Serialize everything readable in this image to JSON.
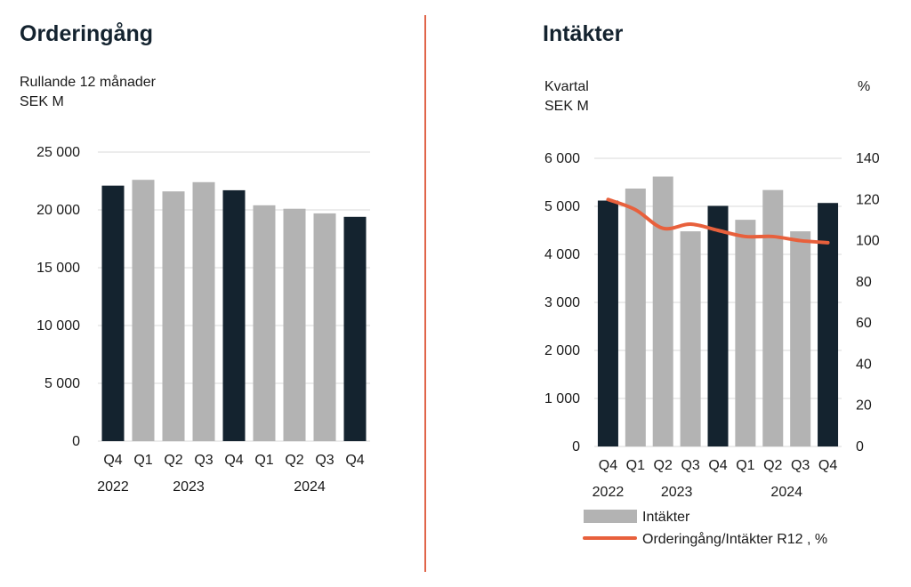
{
  "colors": {
    "highlight_bar": "#14232f",
    "regular_bar": "#b3b3b3",
    "line": "#e8603c",
    "divider": "#e0654a",
    "grid": "#d9d9d9"
  },
  "left_panel": {
    "title": "Orderingång",
    "subtitle_line1": "Rullande 12 månader",
    "subtitle_line2": "SEK M"
  },
  "right_panel": {
    "title": "Intäkter",
    "subtitle_line1": "Kvartal",
    "subtitle_line2": "SEK M",
    "right_axis_unit": "%",
    "legend": {
      "bars": "Intäkter",
      "line": "Orderingång/Intäkter R12 , %"
    }
  },
  "chart_data": [
    {
      "type": "bar",
      "title": "Orderingång",
      "ylabel": "SEK M",
      "categories": [
        "Q4",
        "Q1",
        "Q2",
        "Q3",
        "Q4",
        "Q1",
        "Q2",
        "Q3",
        "Q4"
      ],
      "years": [
        {
          "label": "2022",
          "start": 0,
          "end": 0
        },
        {
          "label": "2023",
          "start": 1,
          "end": 4
        },
        {
          "label": "2024",
          "start": 5,
          "end": 8
        }
      ],
      "values": [
        22100,
        22600,
        21600,
        22400,
        21700,
        20400,
        20100,
        19700,
        19400
      ],
      "highlight": [
        true,
        false,
        false,
        false,
        true,
        false,
        false,
        false,
        true
      ],
      "ylim": [
        0,
        25000
      ],
      "yticks": [
        0,
        5000,
        10000,
        15000,
        20000,
        25000
      ],
      "ytick_labels": [
        "0",
        "5 000",
        "10 000",
        "15 000",
        "20 000",
        "25 000"
      ],
      "grid": true
    },
    {
      "type": "bar+line",
      "title": "Intäkter",
      "ylabel": "SEK M",
      "y2label": "%",
      "categories": [
        "Q4",
        "Q1",
        "Q2",
        "Q3",
        "Q4",
        "Q1",
        "Q2",
        "Q3",
        "Q4"
      ],
      "years": [
        {
          "label": "2022",
          "start": 0,
          "end": 0
        },
        {
          "label": "2023",
          "start": 1,
          "end": 4
        },
        {
          "label": "2024",
          "start": 5,
          "end": 8
        }
      ],
      "series": [
        {
          "name": "Intäkter",
          "type": "bar",
          "axis": "left",
          "values": [
            5120,
            5370,
            5620,
            4480,
            5010,
            4720,
            5340,
            4480,
            5070
          ],
          "highlight": [
            true,
            false,
            false,
            false,
            true,
            false,
            false,
            false,
            true
          ]
        },
        {
          "name": "Orderingång/Intäkter R12 , %",
          "type": "line",
          "axis": "right",
          "values": [
            120,
            115,
            106,
            108,
            105,
            102,
            102,
            100,
            99
          ]
        }
      ],
      "ylim": [
        0,
        6000
      ],
      "yticks": [
        0,
        1000,
        2000,
        3000,
        4000,
        5000,
        6000
      ],
      "ytick_labels": [
        "0",
        "1 000",
        "2 000",
        "3 000",
        "4 000",
        "5 000",
        "6 000"
      ],
      "y2lim": [
        0,
        140
      ],
      "y2ticks": [
        0,
        20,
        40,
        60,
        80,
        100,
        120,
        140
      ],
      "y2tick_labels": [
        "0",
        "20",
        "40",
        "60",
        "80",
        "100",
        "120",
        "140"
      ],
      "grid": true,
      "legend": "bottom"
    }
  ]
}
